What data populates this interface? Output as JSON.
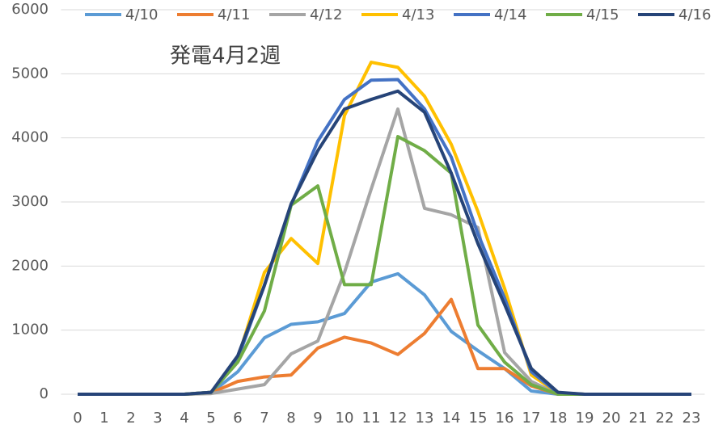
{
  "chart_data": {
    "type": "line",
    "title": "発電4月2週",
    "categories": [
      0,
      1,
      2,
      3,
      4,
      5,
      6,
      7,
      8,
      9,
      10,
      11,
      12,
      13,
      14,
      15,
      16,
      17,
      18,
      19,
      20,
      21,
      22,
      23
    ],
    "series": [
      {
        "name": "4/10",
        "color": "#5b9bd5",
        "values": [
          0,
          0,
          0,
          0,
          0,
          20,
          350,
          880,
          1090,
          1130,
          1260,
          1750,
          1880,
          1550,
          980,
          680,
          400,
          50,
          0,
          0,
          0,
          0,
          0,
          0
        ]
      },
      {
        "name": "4/11",
        "color": "#ed7d31",
        "values": [
          0,
          0,
          0,
          0,
          0,
          20,
          200,
          270,
          300,
          720,
          890,
          800,
          620,
          950,
          1480,
          400,
          400,
          130,
          0,
          0,
          0,
          0,
          0,
          0
        ]
      },
      {
        "name": "4/12",
        "color": "#a5a5a5",
        "values": [
          0,
          0,
          0,
          0,
          0,
          10,
          80,
          150,
          630,
          830,
          1900,
          3200,
          4450,
          2900,
          2800,
          2600,
          650,
          200,
          0,
          0,
          0,
          0,
          0,
          0
        ]
      },
      {
        "name": "4/13",
        "color": "#ffc000",
        "values": [
          0,
          0,
          0,
          0,
          0,
          30,
          550,
          1900,
          2430,
          2040,
          4350,
          5180,
          5100,
          4650,
          3900,
          2850,
          1650,
          300,
          20,
          0,
          0,
          0,
          0,
          0
        ]
      },
      {
        "name": "4/14",
        "color": "#4472c4",
        "values": [
          0,
          0,
          0,
          0,
          0,
          30,
          550,
          1700,
          2950,
          3950,
          4600,
          4900,
          4910,
          4450,
          3700,
          2500,
          1500,
          350,
          20,
          0,
          0,
          0,
          0,
          0
        ]
      },
      {
        "name": "4/15",
        "color": "#70ad47",
        "values": [
          0,
          0,
          0,
          0,
          0,
          30,
          500,
          1300,
          2950,
          3250,
          1710,
          1710,
          4020,
          3800,
          3450,
          1080,
          500,
          150,
          0,
          0,
          0,
          0,
          0,
          0
        ]
      },
      {
        "name": "4/16",
        "color": "#264478",
        "values": [
          0,
          0,
          0,
          0,
          0,
          30,
          600,
          1700,
          2970,
          3800,
          4450,
          4600,
          4730,
          4400,
          3450,
          2350,
          1400,
          400,
          30,
          0,
          0,
          0,
          0,
          0
        ]
      }
    ],
    "ylim": [
      0,
      6000
    ],
    "yticks": [
      0,
      1000,
      2000,
      3000,
      4000,
      5000,
      6000
    ],
    "grid": true
  }
}
